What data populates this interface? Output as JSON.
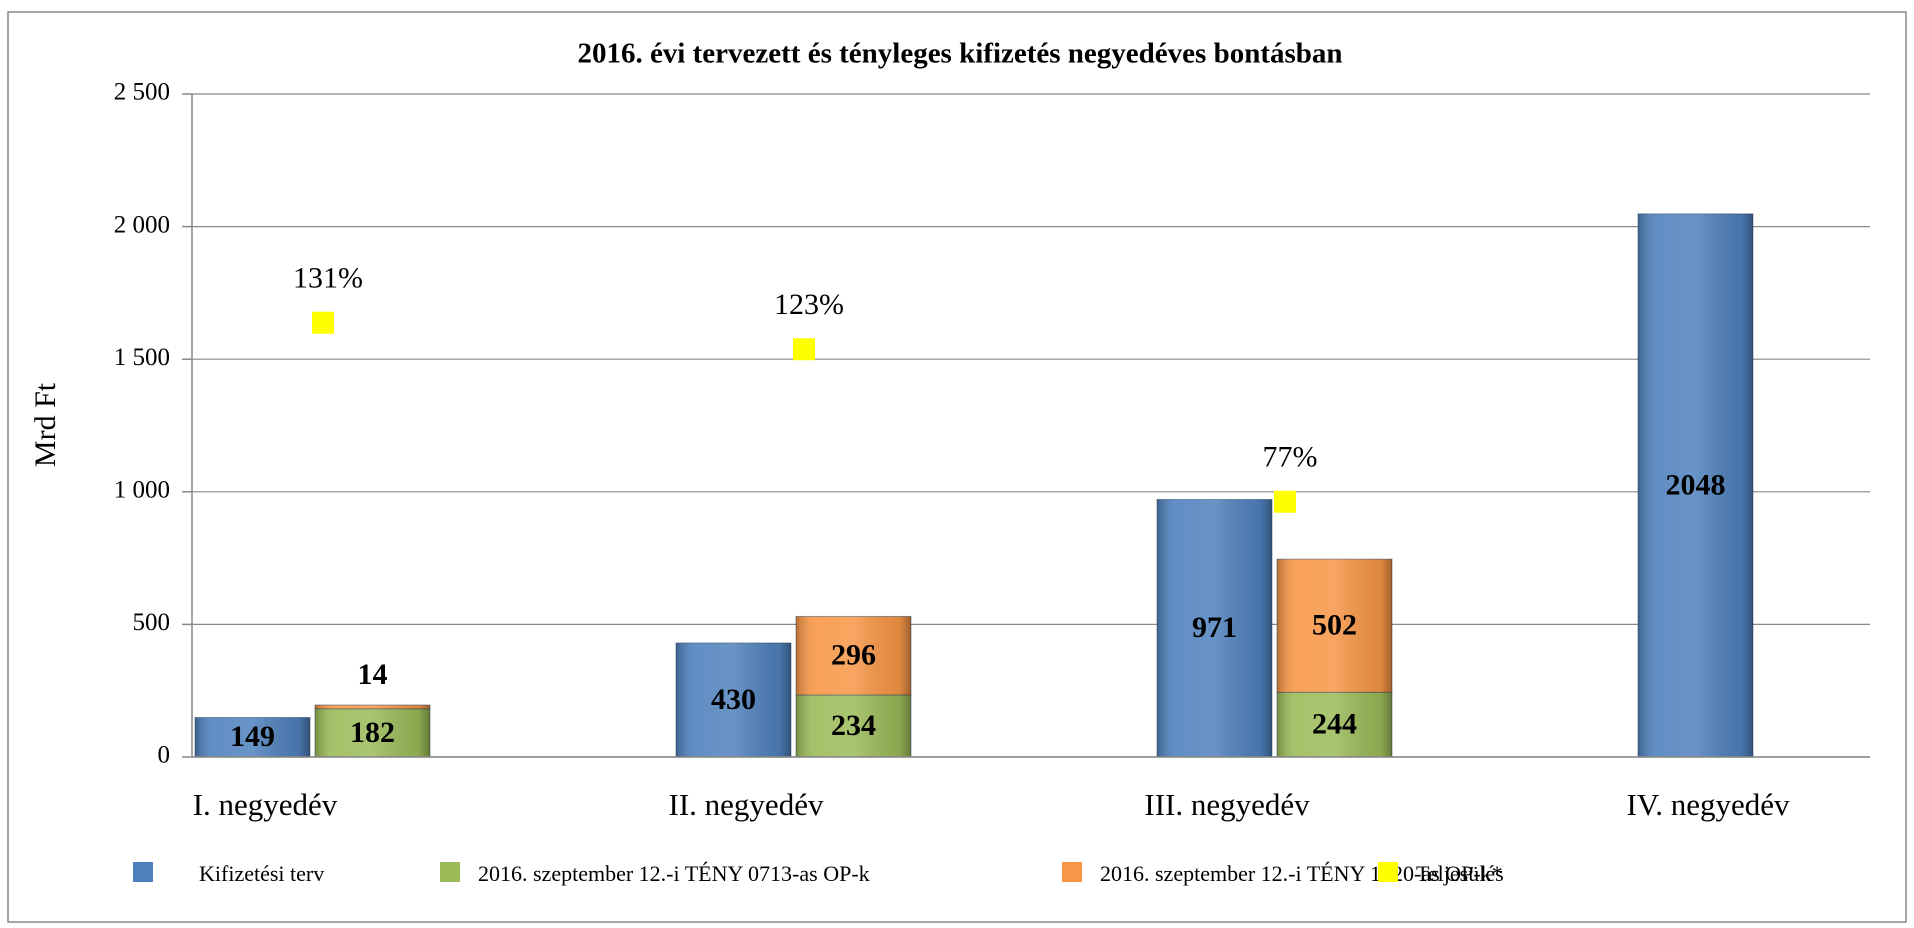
{
  "chart_data": {
    "type": "bar",
    "title": "2016. évi tervezett és tényleges kifizetés negyedéves bontásban",
    "y_label": "Mrd Ft",
    "categories": [
      "I. negyedév",
      "II. negyedév",
      "III. negyedév",
      "IV. negyedév"
    ],
    "series": [
      {
        "name": "Kifizetési terv",
        "color": "#4f81bd",
        "values": [
          149,
          430,
          971,
          2048
        ]
      },
      {
        "name": "2016. szeptember 12.-i TÉNY 0713-as OP-k",
        "color": "#9bbb59",
        "stack": "teny",
        "values": [
          182,
          234,
          244,
          null
        ]
      },
      {
        "name": "2016. szeptember 12.-i TÉNY 1420-as OP-k*",
        "color": "#f79646",
        "stack": "teny",
        "values": [
          14,
          296,
          502,
          null
        ]
      },
      {
        "name": "Teljesülés",
        "color": "#ffff00",
        "type": "scatter",
        "axis": "y2",
        "values": [
          131,
          123,
          77,
          null
        ],
        "value_labels": [
          "131%",
          "123%",
          "77%",
          null
        ]
      }
    ],
    "ylim": [
      0,
      2500
    ],
    "yticks": [
      0,
      500,
      {
        "value": 1000,
        "label": "1 000"
      },
      {
        "value": 1500,
        "label": "1 500"
      },
      {
        "value": 2000,
        "label": "2 000"
      },
      {
        "value": 2500,
        "label": "2 500"
      }
    ],
    "y2lim": [
      0,
      200
    ],
    "grid": true,
    "legend": "bottom"
  }
}
